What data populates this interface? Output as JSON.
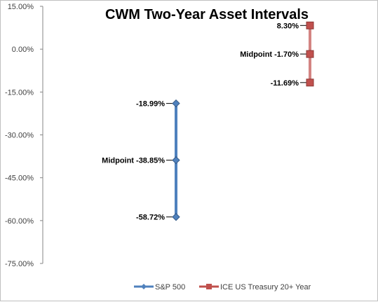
{
  "chart_data": {
    "type": "line",
    "title": "CWM Two-Year Asset Intervals",
    "xlabel": "",
    "ylabel": "",
    "ylim": [
      -75,
      15
    ],
    "y_ticks": [
      15,
      0,
      -15,
      -30,
      -45,
      -60,
      -75
    ],
    "y_tick_labels": [
      "15.00%",
      "0.00%",
      "-15.00%",
      "-30.00%",
      "-45.00%",
      "-60.00%",
      "-75.00%"
    ],
    "grid": false,
    "legend_position": "bottom",
    "series": [
      {
        "name": "S&P 500",
        "color": "#4f81bd",
        "marker": "diamond",
        "values": [
          -18.99,
          -38.85,
          -58.72
        ],
        "labels": [
          "-18.99%",
          "Midpoint -38.85%",
          "-58.72%"
        ]
      },
      {
        "name": "ICE US Treasury 20+ Year",
        "color": "#c0504d",
        "marker": "square",
        "values": [
          8.3,
          -1.7,
          -11.69
        ],
        "labels": [
          "8.30%",
          "Midpoint -1.70%",
          "-11.69%"
        ]
      }
    ]
  }
}
